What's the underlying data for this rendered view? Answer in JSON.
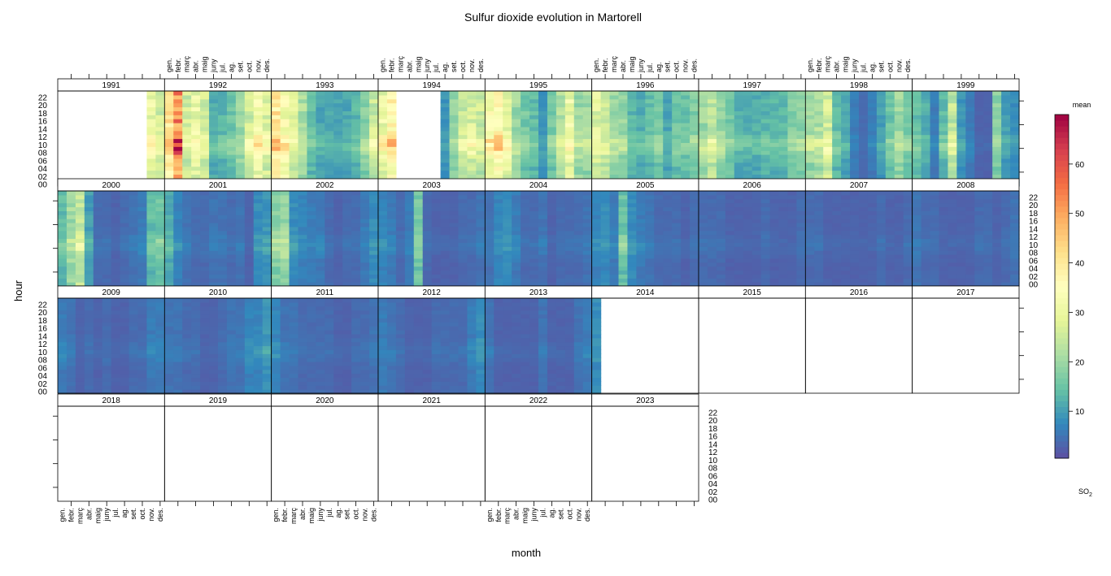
{
  "chart_data": {
    "type": "heatmap",
    "title": "Sulfur dioxide evolution in Martorell",
    "xlabel": "month",
    "ylabel": "hour",
    "legend": {
      "title": "mean",
      "label_main": "SO",
      "label_sub": "2",
      "ticks": [
        10,
        20,
        30,
        40,
        50,
        60
      ],
      "range": [
        0.5,
        70
      ],
      "placement": "right"
    },
    "month_ticks": [
      "gen.",
      "febr.",
      "març",
      "abr.",
      "maig",
      "juny",
      "jul.",
      "ag.",
      "set.",
      "oct.",
      "nov.",
      "des."
    ],
    "hour_ticks": [
      "00",
      "02",
      "04",
      "06",
      "08",
      "10",
      "12",
      "14",
      "16",
      "18",
      "20",
      "22"
    ],
    "layout": {
      "columns": 9,
      "rows": 4
    },
    "panels": [
      {
        "year": "1991",
        "months": [
          null,
          null,
          null,
          null,
          null,
          null,
          null,
          null,
          null,
          null,
          30,
          26
        ]
      },
      {
        "year": "1992",
        "months": [
          40,
          52,
          26,
          30,
          25,
          12,
          13,
          15,
          19,
          25,
          32,
          28
        ]
      },
      {
        "year": "1993",
        "months": [
          40,
          32,
          27,
          22,
          14,
          11,
          11,
          11,
          11,
          13,
          18,
          25
        ]
      },
      {
        "year": "1994",
        "months": [
          30,
          36,
          null,
          null,
          null,
          null,
          null,
          9,
          19,
          24,
          27,
          25
        ]
      },
      {
        "year": "1995",
        "months": [
          33,
          36,
          30,
          20,
          16,
          14,
          9,
          16,
          22,
          30,
          20,
          20
        ]
      },
      {
        "year": "1996",
        "months": [
          28,
          24,
          20,
          19,
          13,
          12,
          14,
          16,
          11,
          15,
          15,
          17
        ]
      },
      {
        "year": "1997",
        "months": [
          20,
          24,
          20,
          16,
          12,
          12,
          12,
          13,
          13,
          13,
          17,
          18
        ]
      },
      {
        "year": "1998",
        "months": [
          20,
          22,
          26,
          14,
          11,
          6,
          4,
          6,
          10,
          15,
          20,
          16
        ]
      },
      {
        "year": "1999",
        "months": [
          14,
          12,
          6,
          14,
          24,
          9,
          6,
          3,
          3,
          18,
          10,
          8
        ]
      },
      {
        "year": "2000",
        "months": [
          14,
          20,
          24,
          10,
          4,
          4,
          3,
          4,
          5,
          6,
          14,
          15
        ]
      },
      {
        "year": "2001",
        "months": [
          12,
          7,
          5,
          4,
          4,
          5,
          5,
          4,
          5,
          3,
          8,
          9
        ]
      },
      {
        "year": "2002",
        "months": [
          18,
          20,
          8,
          7,
          6,
          6,
          4,
          3,
          4,
          4,
          6,
          8
        ]
      },
      {
        "year": "2003",
        "months": [
          7,
          6,
          4,
          6,
          16,
          4,
          3,
          3,
          3,
          4,
          4,
          5
        ]
      },
      {
        "year": "2004",
        "months": [
          5,
          7,
          8,
          6,
          4,
          4,
          5,
          3,
          4,
          4,
          4,
          5
        ]
      },
      {
        "year": "2005",
        "months": [
          7,
          8,
          6,
          15,
          8,
          6,
          5,
          4,
          4,
          4,
          3,
          4
        ]
      },
      {
        "year": "2006",
        "months": [
          4,
          4,
          4,
          3,
          3,
          3,
          3,
          4,
          3,
          3,
          3,
          4
        ]
      },
      {
        "year": "2007",
        "months": [
          4,
          4,
          3,
          3,
          3,
          3,
          3,
          3,
          4,
          3,
          3,
          4
        ]
      },
      {
        "year": "2008",
        "months": [
          5,
          4,
          4,
          3,
          3,
          3,
          3,
          4,
          4,
          3,
          4,
          5
        ]
      },
      {
        "year": "2009",
        "months": [
          6,
          5,
          3,
          4,
          3,
          4,
          3,
          3,
          4,
          4,
          6,
          6
        ]
      },
      {
        "year": "2010",
        "months": [
          5,
          5,
          4,
          4,
          3,
          3,
          4,
          5,
          5,
          7,
          7,
          9
        ]
      },
      {
        "year": "2011",
        "months": [
          7,
          5,
          5,
          4,
          4,
          4,
          4,
          3,
          3,
          4,
          4,
          5
        ]
      },
      {
        "year": "2012",
        "months": [
          6,
          5,
          4,
          3,
          3,
          3,
          4,
          4,
          4,
          4,
          6,
          8
        ]
      },
      {
        "year": "2013",
        "months": [
          5,
          3,
          3,
          3,
          3,
          3,
          5,
          3,
          3,
          3,
          5,
          6
        ]
      },
      {
        "year": "2014",
        "months": [
          8,
          null,
          null,
          null,
          null,
          null,
          null,
          null,
          null,
          null,
          null,
          null
        ]
      },
      {
        "year": "2015",
        "months": [
          null,
          null,
          null,
          null,
          null,
          null,
          null,
          null,
          null,
          null,
          null,
          null
        ]
      },
      {
        "year": "2016",
        "months": [
          null,
          null,
          null,
          null,
          null,
          null,
          null,
          null,
          null,
          null,
          null,
          null
        ]
      },
      {
        "year": "2017",
        "months": [
          null,
          null,
          null,
          null,
          null,
          null,
          null,
          null,
          null,
          null,
          null,
          null
        ]
      },
      {
        "year": "2018",
        "months": [
          null,
          null,
          null,
          null,
          null,
          null,
          null,
          null,
          null,
          null,
          null,
          null
        ]
      },
      {
        "year": "2019",
        "months": [
          null,
          null,
          null,
          null,
          null,
          null,
          null,
          null,
          null,
          null,
          null,
          null
        ]
      },
      {
        "year": "2020",
        "months": [
          null,
          null,
          null,
          null,
          null,
          null,
          null,
          null,
          null,
          null,
          null,
          null
        ]
      },
      {
        "year": "2021",
        "months": [
          null,
          null,
          null,
          null,
          null,
          null,
          null,
          null,
          null,
          null,
          null,
          null
        ]
      },
      {
        "year": "2022",
        "months": [
          null,
          null,
          null,
          null,
          null,
          null,
          null,
          null,
          null,
          null,
          null,
          null
        ]
      },
      {
        "year": "2023",
        "months": [
          null,
          null,
          null,
          null,
          null,
          null,
          null,
          null,
          null,
          null,
          null,
          null
        ]
      }
    ],
    "colors": [
      "#5E4FA2",
      "#3288BD",
      "#66C2A5",
      "#ABDDA4",
      "#E6F598",
      "#FFFFBF",
      "#FEE08B",
      "#FDAE61",
      "#F46D43",
      "#D53E4F",
      "#9E0142"
    ]
  }
}
